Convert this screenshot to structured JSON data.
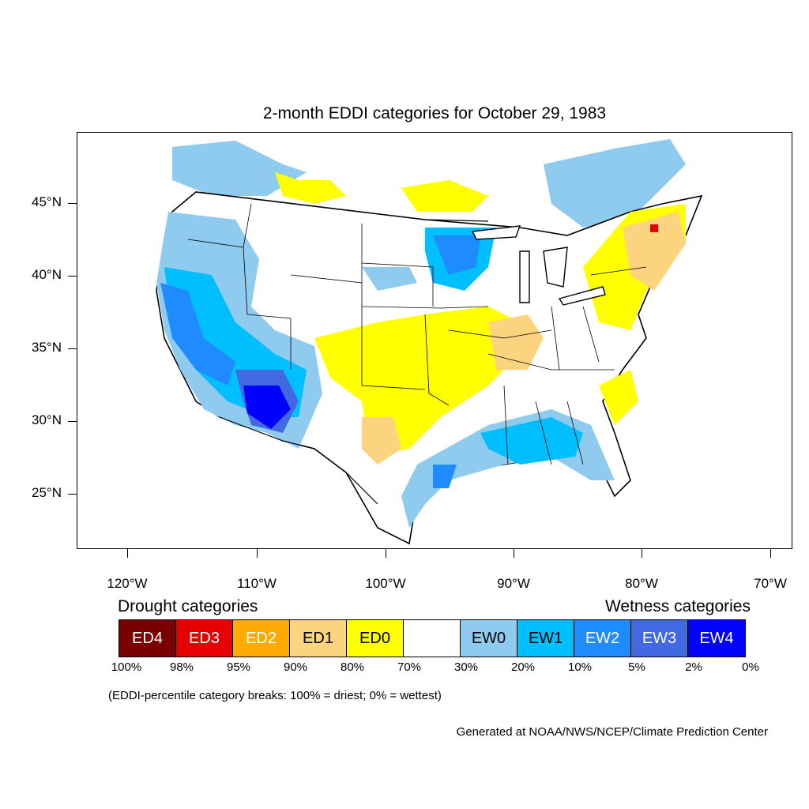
{
  "title": "2-month EDDI categories for October 29, 1983",
  "map": {
    "lat_labels": [
      "45°N",
      "40°N",
      "35°N",
      "30°N",
      "25°N"
    ],
    "lon_labels": [
      "120°W",
      "110°W",
      "100°W",
      "90°W",
      "80°W",
      "70°W"
    ],
    "colors": {
      "ED4": "#7a0000",
      "ED3": "#e60000",
      "ED2": "#ffaa00",
      "ED1": "#fcd37f",
      "ED0": "#ffff00",
      "EW0": "#8ecbef",
      "EW1": "#00bfff",
      "EW2": "#1e8cff",
      "EW3": "#4169e1",
      "EW4": "#0000ff"
    }
  },
  "legend": {
    "drought_heading": "Drought categories",
    "wetness_heading": "Wetness categories",
    "cells": [
      {
        "label": "ED4",
        "color": "#7a0000",
        "text_color": "#ffffff"
      },
      {
        "label": "ED3",
        "color": "#e60000",
        "text_color": "#ffffff"
      },
      {
        "label": "ED2",
        "color": "#ffaa00",
        "text_color": "#ffffff"
      },
      {
        "label": "ED1",
        "color": "#fcd37f",
        "text_color": "#000000"
      },
      {
        "label": "ED0",
        "color": "#ffff00",
        "text_color": "#000000"
      },
      {
        "label": "",
        "color": "#ffffff",
        "text_color": "#000000"
      },
      {
        "label": "EW0",
        "color": "#8ecbef",
        "text_color": "#000000"
      },
      {
        "label": "EW1",
        "color": "#00bfff",
        "text_color": "#000000"
      },
      {
        "label": "EW2",
        "color": "#1e8cff",
        "text_color": "#ffffff"
      },
      {
        "label": "EW3",
        "color": "#4169e1",
        "text_color": "#ffffff"
      },
      {
        "label": "EW4",
        "color": "#0000ff",
        "text_color": "#ffffff"
      }
    ],
    "breaks": [
      "100%",
      "98%",
      "95%",
      "90%",
      "80%",
      "70%",
      "30%",
      "20%",
      "10%",
      "5%",
      "2%",
      "0%"
    ]
  },
  "note": "(EDDI-percentile category breaks: 100% = driest; 0% = wettest)",
  "credit": "Generated at NOAA/NWS/NCEP/Climate Prediction Center"
}
